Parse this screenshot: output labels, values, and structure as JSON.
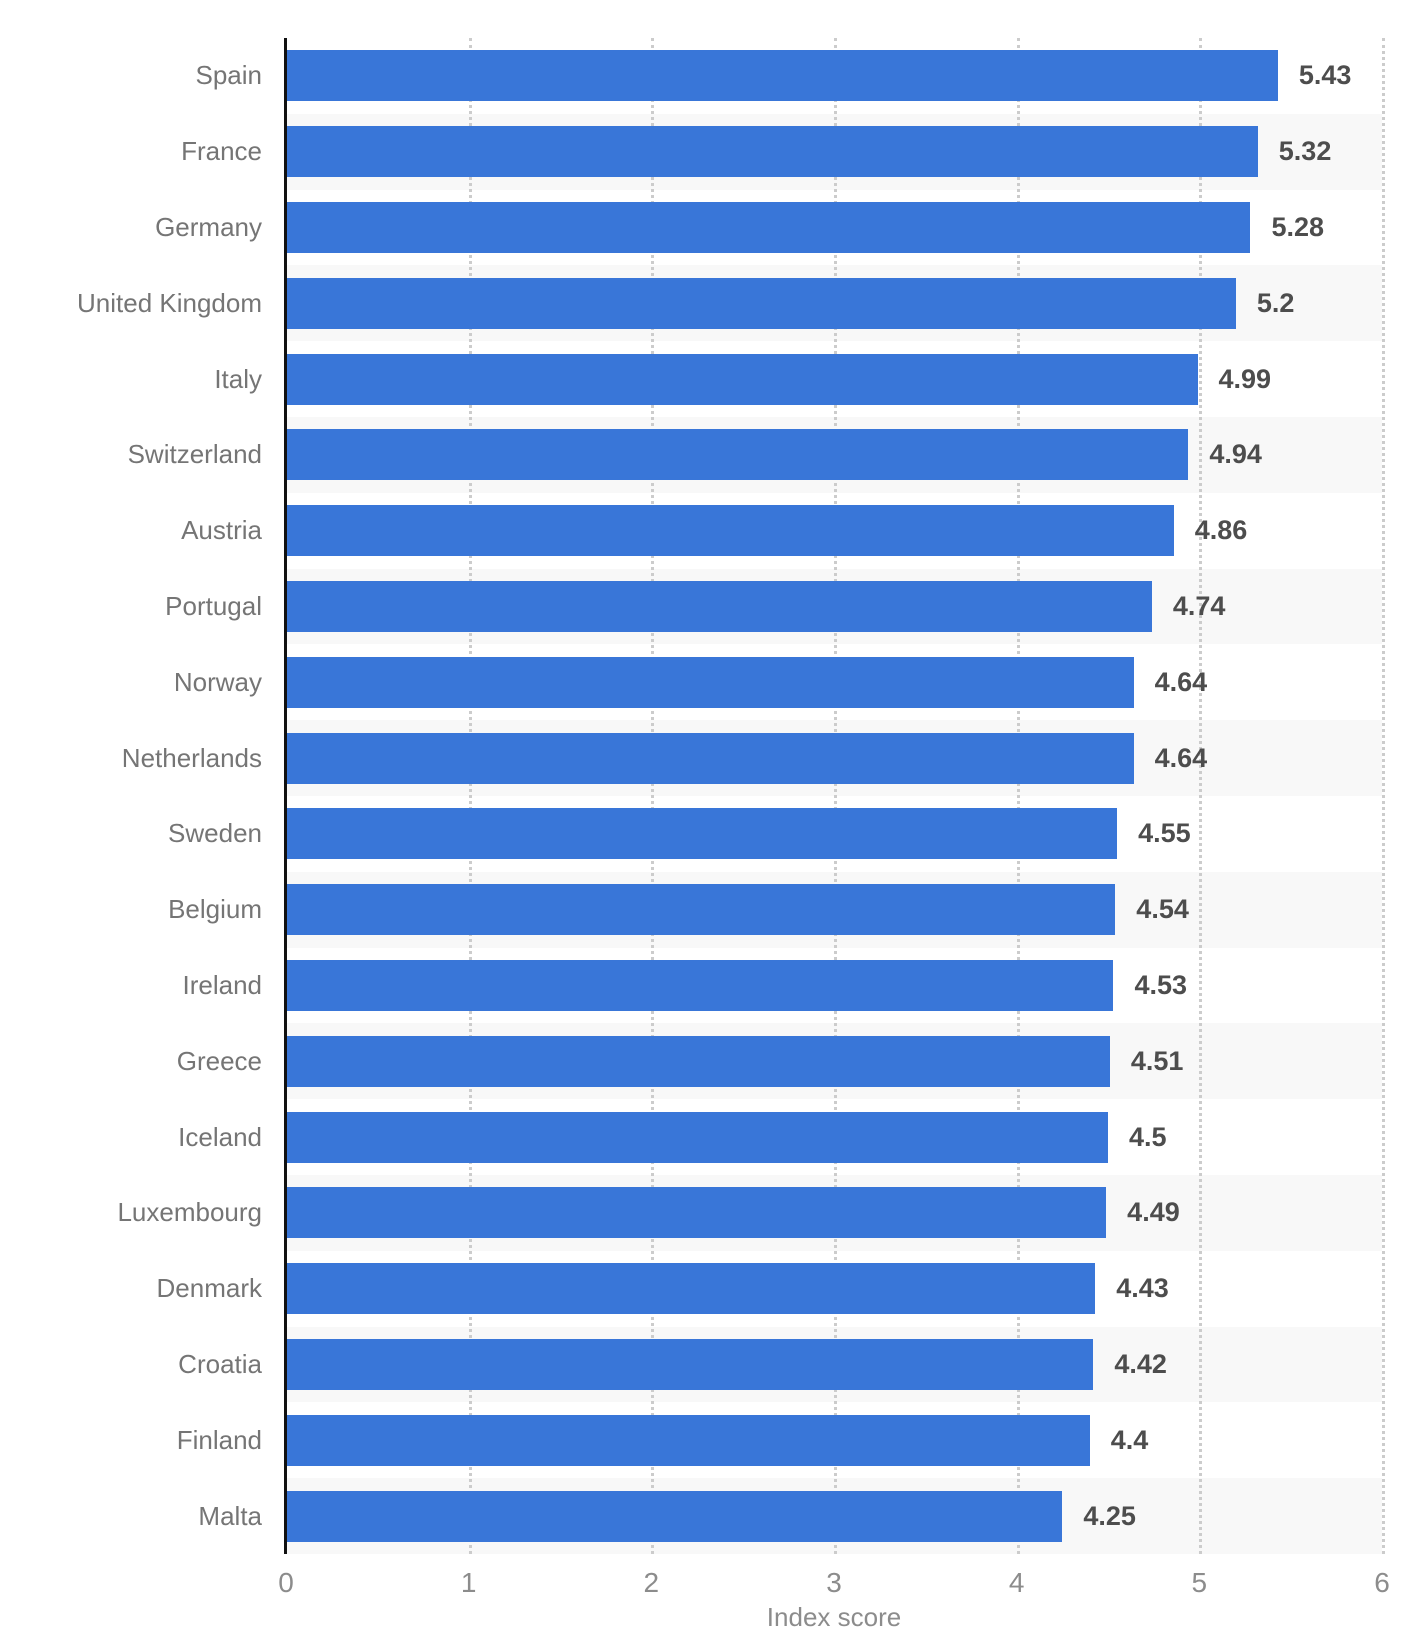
{
  "chart_data": {
    "type": "bar",
    "orientation": "horizontal",
    "categories": [
      "Spain",
      "France",
      "Germany",
      "United Kingdom",
      "Italy",
      "Switzerland",
      "Austria",
      "Portugal",
      "Norway",
      "Netherlands",
      "Sweden",
      "Belgium",
      "Ireland",
      "Greece",
      "Iceland",
      "Luxembourg",
      "Denmark",
      "Croatia",
      "Finland",
      "Malta"
    ],
    "values": [
      5.43,
      5.32,
      5.28,
      5.2,
      4.99,
      4.94,
      4.86,
      4.74,
      4.64,
      4.64,
      4.55,
      4.54,
      4.53,
      4.51,
      4.5,
      4.49,
      4.43,
      4.42,
      4.4,
      4.25
    ],
    "value_labels": [
      "5.43",
      "5.32",
      "5.28",
      "5.2",
      "4.99",
      "4.94",
      "4.86",
      "4.74",
      "4.64",
      "4.64",
      "4.55",
      "4.54",
      "4.53",
      "4.51",
      "4.5",
      "4.49",
      "4.43",
      "4.42",
      "4.4",
      "4.25"
    ],
    "title": "",
    "xlabel": "Index score",
    "ylabel": "",
    "xlim": [
      0,
      6
    ],
    "x_ticks": [
      "0",
      "1",
      "2",
      "3",
      "4",
      "5",
      "6"
    ],
    "grid": "vertical dotted gridlines at each integer",
    "legend": "none",
    "colors": {
      "bar": "#3976d8",
      "row_stripe": "#f8f8f8",
      "gridline": "#cccccc",
      "axis_line": "#111111",
      "category_label": "#757575",
      "value_label": "#4d4d4d",
      "tick_label": "#8c8c8c"
    }
  }
}
